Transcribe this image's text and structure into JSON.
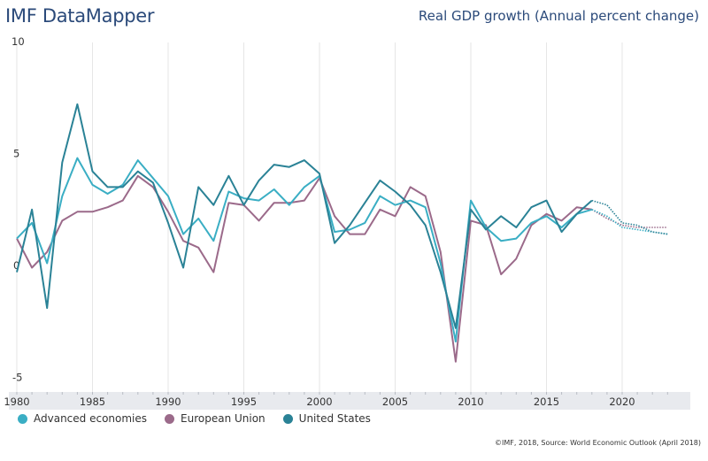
{
  "header": {
    "brand": "IMF DataMapper",
    "title": "Real GDP growth (Annual percent change)"
  },
  "footer": {
    "source": "©IMF, 2018, Source: World Economic Outlook (April 2018)"
  },
  "colors": {
    "advanced": "#3aaec4",
    "eu": "#9b6a8a",
    "us": "#2a8296",
    "grid": "#e6e6e6",
    "axis_band": "#e8eaee",
    "text": "#333333"
  },
  "chart_data": {
    "type": "line",
    "title": "Real GDP growth (Annual percent change)",
    "xlabel": "",
    "ylabel": "",
    "xlim": [
      1980,
      2023
    ],
    "ylim": [
      -5,
      10
    ],
    "y_ticks": [
      10,
      5,
      0,
      -5
    ],
    "x_ticks": [
      1980,
      1985,
      1990,
      1995,
      2000,
      2005,
      2010,
      2015,
      2020
    ],
    "grid": "vertical",
    "legend_position": "bottom-left",
    "projection_start": 2018,
    "x": [
      1980,
      1981,
      1982,
      1983,
      1984,
      1985,
      1986,
      1987,
      1988,
      1989,
      1990,
      1991,
      1992,
      1993,
      1994,
      1995,
      1996,
      1997,
      1998,
      1999,
      2000,
      2001,
      2002,
      2003,
      2004,
      2005,
      2006,
      2007,
      2008,
      2009,
      2010,
      2011,
      2012,
      2013,
      2014,
      2015,
      2016,
      2017,
      2018,
      2019,
      2020,
      2021,
      2022,
      2023
    ],
    "series": [
      {
        "name": "Advanced economies",
        "key": "advanced",
        "values": [
          1.2,
          1.9,
          0.1,
          3.1,
          4.8,
          3.6,
          3.2,
          3.6,
          4.7,
          3.9,
          3.1,
          1.4,
          2.1,
          1.1,
          3.3,
          3.0,
          2.9,
          3.4,
          2.7,
          3.5,
          4.0,
          1.5,
          1.6,
          1.9,
          3.1,
          2.7,
          2.9,
          2.6,
          0.1,
          -3.4,
          2.9,
          1.7,
          1.1,
          1.2,
          1.9,
          2.2,
          1.7,
          2.3,
          2.5,
          2.2,
          1.7,
          1.6,
          1.5,
          1.4
        ]
      },
      {
        "name": "European Union",
        "key": "eu",
        "values": [
          1.2,
          -0.1,
          0.6,
          2.0,
          2.4,
          2.4,
          2.6,
          2.9,
          4.0,
          3.5,
          2.4,
          1.1,
          0.8,
          -0.3,
          2.8,
          2.7,
          2.0,
          2.8,
          2.8,
          2.9,
          3.9,
          2.2,
          1.4,
          1.4,
          2.5,
          2.2,
          3.5,
          3.1,
          0.6,
          -4.3,
          2.0,
          1.8,
          -0.4,
          0.3,
          1.8,
          2.3,
          2.0,
          2.6,
          2.5,
          2.1,
          1.8,
          1.7,
          1.7,
          1.7
        ]
      },
      {
        "name": "United States",
        "key": "us",
        "values": [
          -0.3,
          2.5,
          -1.9,
          4.6,
          7.2,
          4.2,
          3.5,
          3.5,
          4.2,
          3.7,
          1.9,
          -0.1,
          3.5,
          2.7,
          4.0,
          2.7,
          3.8,
          4.5,
          4.4,
          4.7,
          4.1,
          1.0,
          1.8,
          2.8,
          3.8,
          3.3,
          2.7,
          1.8,
          -0.3,
          -2.8,
          2.5,
          1.6,
          2.2,
          1.7,
          2.6,
          2.9,
          1.5,
          2.3,
          2.9,
          2.7,
          1.9,
          1.8,
          1.5,
          1.4
        ]
      }
    ]
  }
}
